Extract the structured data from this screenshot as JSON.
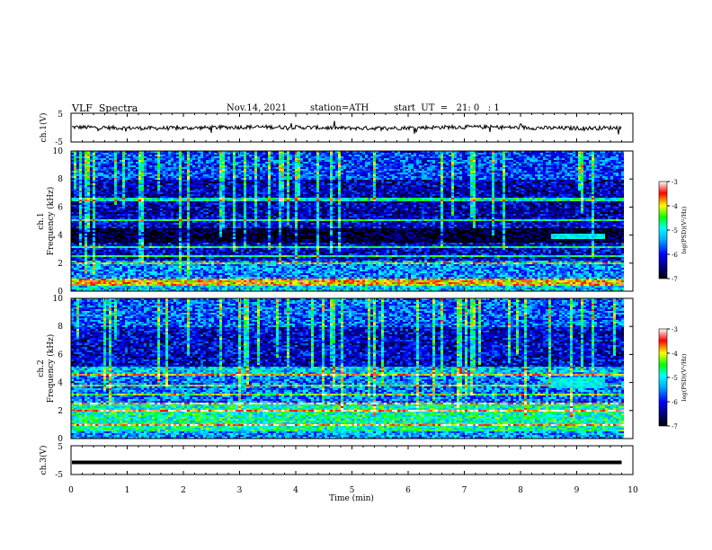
{
  "header": {
    "title": "VLF  Spectra",
    "date": "Nov.14, 2021",
    "station": "station=ATH",
    "start": "start  UT  =   21: 0   : 1"
  },
  "colors": {
    "colormap": [
      "#000000",
      "#000080",
      "#0000ff",
      "#00aaff",
      "#00ffff",
      "#00ff00",
      "#ffff00",
      "#ff0000",
      "#ffffff"
    ],
    "trace": "#000000"
  },
  "chart_data": [
    {
      "type": "line",
      "name": "ch1-waveform",
      "ylabel": "ch.1(V)",
      "ylim": [
        -5,
        5
      ],
      "yticks": [
        "5",
        "-5"
      ],
      "xlim": [
        0,
        10
      ],
      "description": "noisy waveform around 0 V",
      "level": 0,
      "noise_amplitude": 0.7
    },
    {
      "type": "heatmap",
      "name": "ch1-spectrogram",
      "ylabel": "ch.1\nFrequency (kHz)",
      "ylim": [
        0,
        10
      ],
      "yticks": [
        "0",
        "2",
        "4",
        "6",
        "8",
        "10"
      ],
      "xlim": [
        0,
        9.8
      ],
      "colorbar": {
        "label": "log(PSD)(V²/Hz)",
        "ticks": [
          "-3",
          "-4",
          "-5",
          "-6",
          "-7"
        ],
        "range": [
          -7,
          -3
        ]
      },
      "bands": [
        {
          "f": [
            0.0,
            0.5
          ],
          "level": -5.2
        },
        {
          "f": [
            0.5,
            1.0
          ],
          "level": -3.8
        },
        {
          "f": [
            1.0,
            2.3
          ],
          "level": -5.5
        },
        {
          "f": [
            2.3,
            3.5
          ],
          "level": -6.2
        },
        {
          "f": [
            3.5,
            4.5
          ],
          "level": -6.9
        },
        {
          "f": [
            4.5,
            5.3
          ],
          "level": -6.2
        },
        {
          "f": [
            5.3,
            8.0
          ],
          "level": -6.3
        },
        {
          "f": [
            8.0,
            10.0
          ],
          "level": -5.8
        }
      ],
      "lines_khz": [
        2.1,
        2.6,
        3.2,
        5.1,
        6.6
      ],
      "event": {
        "t": [
          8.5,
          9.5
        ],
        "f": [
          3.8,
          4.2
        ]
      }
    },
    {
      "type": "heatmap",
      "name": "ch2-spectrogram",
      "ylabel": "ch.2\nFrequency (kHz)",
      "ylim": [
        0,
        10
      ],
      "yticks": [
        "0",
        "2",
        "4",
        "6",
        "8",
        "10"
      ],
      "xlim": [
        0,
        9.8
      ],
      "colorbar": {
        "label": "log(PSD)(V²/Hz)",
        "ticks": [
          "-3",
          "-4",
          "-5",
          "-6",
          "-7"
        ],
        "range": [
          -7,
          -3
        ]
      },
      "bands": [
        {
          "f": [
            0.0,
            0.6
          ],
          "level": -5.4
        },
        {
          "f": [
            0.6,
            2.6
          ],
          "level": -4.8
        },
        {
          "f": [
            2.6,
            4.5
          ],
          "level": -5.6
        },
        {
          "f": [
            4.5,
            5.2
          ],
          "level": -5.2
        },
        {
          "f": [
            5.2,
            8.0
          ],
          "level": -6.2
        },
        {
          "f": [
            8.0,
            10.0
          ],
          "level": -5.7
        }
      ],
      "lines_khz": [
        1.0,
        2.0,
        2.6,
        3.2,
        3.9,
        4.6
      ],
      "event": {
        "t": [
          8.5,
          9.5
        ],
        "f": [
          3.6,
          4.4
        ]
      }
    },
    {
      "type": "line",
      "name": "ch3-waveform",
      "ylabel": "ch.3(V)",
      "ylim": [
        -5,
        5
      ],
      "yticks": [
        "5",
        "-5"
      ],
      "xlim": [
        0,
        10
      ],
      "xlabel": "Time  (min)",
      "xticks": [
        "0",
        "1",
        "2",
        "3",
        "4",
        "5",
        "6",
        "7",
        "8",
        "9",
        "10"
      ],
      "description": "flat thick trace slightly below 0 V",
      "level": -0.8,
      "noise_amplitude": 0.0
    }
  ]
}
